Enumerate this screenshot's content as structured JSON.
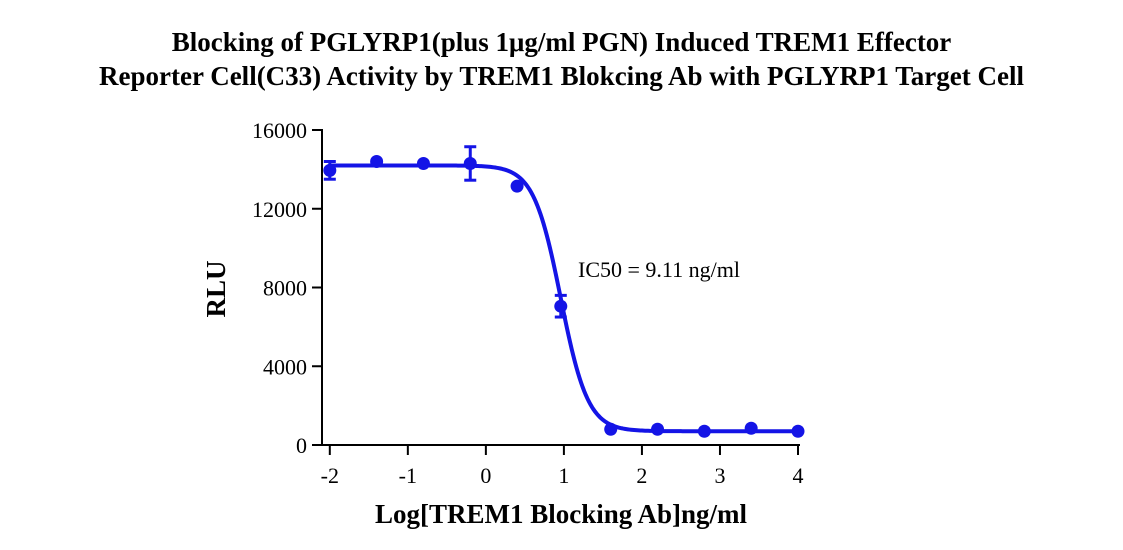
{
  "chart_data": {
    "type": "scatter",
    "title_line1": "Blocking of PGLYRP1(plus 1μg/ml PGN) Induced TREM1 Effector",
    "title_line2": "Reporter Cell(C33) Activity by TREM1 Blokcing Ab with PGLYRP1 Target Cell",
    "xlabel": "Log[TREM1 Blocking Ab]ng/ml",
    "ylabel": "RLU",
    "xlim": [
      -2.1,
      4.0
    ],
    "ylim": [
      0,
      16000
    ],
    "xticks": [
      -2,
      -1,
      0,
      1,
      2,
      3,
      4
    ],
    "yticks": [
      0,
      4000,
      8000,
      12000,
      16000
    ],
    "xtick_labels": [
      "-2",
      "-1",
      "0",
      "1",
      "2",
      "3",
      "4"
    ],
    "ytick_labels": [
      "0",
      "4000",
      "8000",
      "12000",
      "16000"
    ],
    "points": [
      {
        "x": -2.0,
        "y": 13950,
        "err": 450
      },
      {
        "x": -1.4,
        "y": 14400,
        "err": 0
      },
      {
        "x": -0.8,
        "y": 14300,
        "err": 0
      },
      {
        "x": -0.2,
        "y": 14300,
        "err": 850
      },
      {
        "x": 0.4,
        "y": 13150,
        "err": 0
      },
      {
        "x": 0.96,
        "y": 7050,
        "err": 550
      },
      {
        "x": 1.6,
        "y": 800,
        "err": 0
      },
      {
        "x": 2.2,
        "y": 800,
        "err": 0
      },
      {
        "x": 2.8,
        "y": 700,
        "err": 0
      },
      {
        "x": 3.4,
        "y": 850,
        "err": 0
      },
      {
        "x": 4.0,
        "y": 700,
        "err": 0
      }
    ],
    "fit": {
      "model": "4PL",
      "top": 14200,
      "bottom": 700,
      "logIC50": 0.96,
      "hill": -2.5
    },
    "annotation": "IC50 = 9.11 ng/ml",
    "color": "#1414e6",
    "grid": false,
    "legend": "none"
  }
}
